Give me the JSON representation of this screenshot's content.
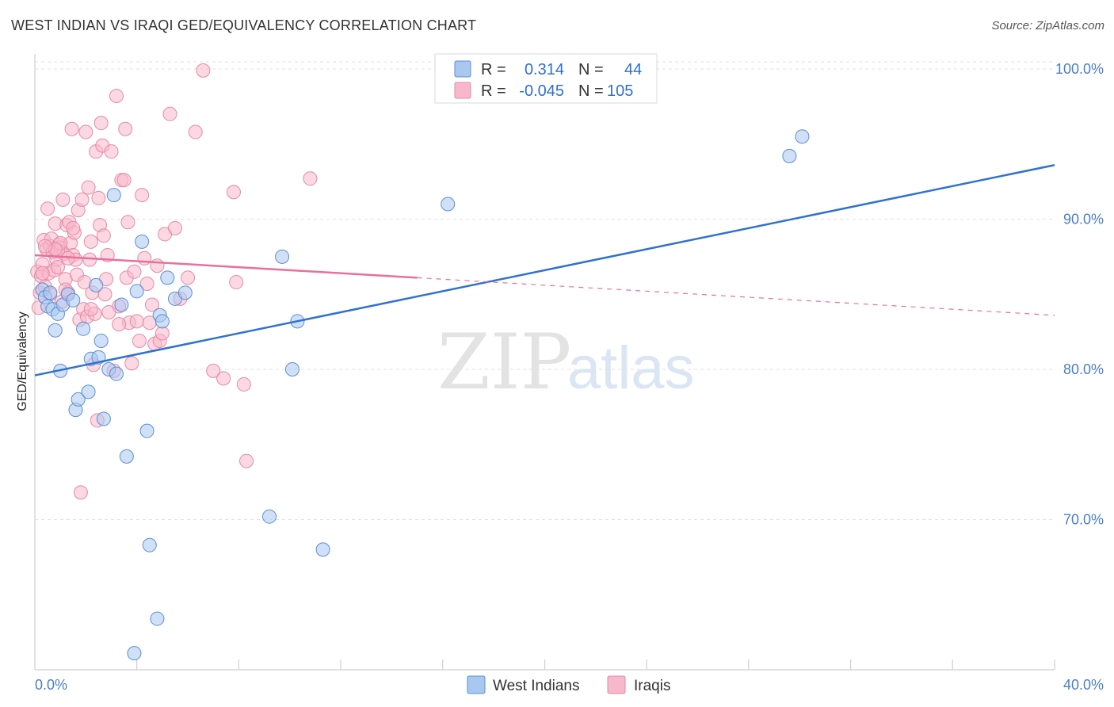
{
  "title": "WEST INDIAN VS IRAQI GED/EQUIVALENCY CORRELATION CHART",
  "source": "Source: ZipAtlas.com",
  "watermark": {
    "zip": "ZIP",
    "atlas": "atlas"
  },
  "legend": {
    "rows": [
      {
        "r_label": "R =",
        "r_value": "0.314",
        "n_label": "N =",
        "n_value": "44",
        "color": "#a9c8f0"
      },
      {
        "r_label": "R =",
        "r_value": "-0.045",
        "n_label": "N =",
        "n_value": "105",
        "color": "#f7b8cb"
      }
    ]
  },
  "bottom_legend": [
    {
      "label": "West Indians",
      "color": "#a9c8f0"
    },
    {
      "label": "Iraqis",
      "color": "#f7b8cb"
    }
  ],
  "chart_data": {
    "type": "scatter",
    "title": "WEST INDIAN VS IRAQI GED/EQUIVALENCY CORRELATION CHART",
    "xlabel": "",
    "ylabel": "GED/Equivalency",
    "xlim": [
      0,
      40
    ],
    "ylim": [
      60,
      101
    ],
    "x_tick_labels": [
      "0.0%",
      "40.0%"
    ],
    "y_ticks": [
      70,
      80,
      90,
      100
    ],
    "y_tick_labels": [
      "70.0%",
      "80.0%",
      "90.0%",
      "100.0%"
    ],
    "colors": {
      "blue_line": "#2f72d0",
      "pink_line": "#e8709a"
    },
    "series": [
      {
        "name": "West Indians",
        "color": "#a9c8f0",
        "stroke": "#5d8fd6",
        "r": 0.314,
        "n": 44,
        "trend": {
          "x0": 0,
          "y0": 79.6,
          "x1": 40,
          "y1": 93.6,
          "style": "solid"
        },
        "points": [
          [
            0.3,
            85.3
          ],
          [
            0.4,
            84.8
          ],
          [
            0.5,
            84.2
          ],
          [
            0.6,
            85.1
          ],
          [
            0.7,
            84.0
          ],
          [
            0.8,
            82.6
          ],
          [
            0.9,
            83.7
          ],
          [
            1.0,
            79.9
          ],
          [
            1.1,
            84.3
          ],
          [
            1.3,
            85.0
          ],
          [
            1.5,
            84.6
          ],
          [
            1.6,
            77.3
          ],
          [
            1.7,
            78.0
          ],
          [
            1.9,
            82.7
          ],
          [
            2.1,
            78.5
          ],
          [
            2.2,
            80.7
          ],
          [
            2.4,
            85.6
          ],
          [
            2.5,
            80.8
          ],
          [
            2.6,
            81.9
          ],
          [
            2.7,
            76.7
          ],
          [
            2.9,
            80.0
          ],
          [
            3.1,
            91.6
          ],
          [
            3.2,
            79.7
          ],
          [
            3.4,
            84.3
          ],
          [
            3.6,
            74.2
          ],
          [
            3.9,
            61.1
          ],
          [
            4.0,
            85.2
          ],
          [
            4.2,
            88.5
          ],
          [
            4.4,
            75.9
          ],
          [
            4.5,
            68.3
          ],
          [
            4.8,
            63.4
          ],
          [
            4.9,
            83.6
          ],
          [
            5.0,
            83.2
          ],
          [
            5.2,
            86.1
          ],
          [
            5.5,
            84.7
          ],
          [
            5.9,
            85.1
          ],
          [
            9.2,
            70.2
          ],
          [
            9.7,
            87.5
          ],
          [
            10.1,
            80.0
          ],
          [
            10.3,
            83.2
          ],
          [
            11.3,
            68.0
          ],
          [
            16.2,
            91.0
          ],
          [
            29.6,
            94.2
          ],
          [
            30.1,
            95.5
          ]
        ]
      },
      {
        "name": "Iraqis",
        "color": "#f7b8cb",
        "stroke": "#e68aa8",
        "r": -0.045,
        "n": 105,
        "trend": {
          "x0": 0,
          "y0": 87.6,
          "x1": 40,
          "y1": 83.6,
          "solid_until_x": 15.0,
          "style": "solid-then-dashed"
        },
        "points": [
          [
            0.1,
            86.5
          ],
          [
            0.15,
            84.1
          ],
          [
            0.2,
            85.1
          ],
          [
            0.25,
            86.2
          ],
          [
            0.3,
            87.0
          ],
          [
            0.35,
            88.6
          ],
          [
            0.4,
            85.5
          ],
          [
            0.45,
            88.0
          ],
          [
            0.5,
            90.7
          ],
          [
            0.55,
            86.4
          ],
          [
            0.6,
            88.2
          ],
          [
            0.65,
            88.7
          ],
          [
            0.7,
            87.8
          ],
          [
            0.75,
            86.6
          ],
          [
            0.8,
            89.7
          ],
          [
            0.85,
            87.3
          ],
          [
            0.9,
            86.8
          ],
          [
            0.95,
            88.3
          ],
          [
            1.0,
            88.1
          ],
          [
            1.05,
            84.5
          ],
          [
            1.1,
            91.3
          ],
          [
            1.15,
            87.7
          ],
          [
            1.2,
            86.0
          ],
          [
            1.25,
            89.6
          ],
          [
            1.3,
            85.1
          ],
          [
            1.35,
            89.8
          ],
          [
            1.4,
            88.4
          ],
          [
            1.45,
            96.0
          ],
          [
            1.5,
            87.6
          ],
          [
            1.55,
            89.1
          ],
          [
            1.6,
            87.3
          ],
          [
            1.65,
            86.3
          ],
          [
            1.7,
            90.6
          ],
          [
            1.75,
            83.3
          ],
          [
            1.8,
            71.8
          ],
          [
            1.85,
            91.3
          ],
          [
            1.9,
            84.0
          ],
          [
            1.95,
            85.8
          ],
          [
            2.0,
            95.8
          ],
          [
            2.05,
            83.5
          ],
          [
            2.1,
            92.1
          ],
          [
            2.15,
            87.3
          ],
          [
            2.2,
            88.5
          ],
          [
            2.25,
            85.1
          ],
          [
            2.3,
            80.3
          ],
          [
            2.35,
            83.7
          ],
          [
            2.4,
            94.5
          ],
          [
            2.45,
            76.6
          ],
          [
            2.5,
            91.4
          ],
          [
            2.55,
            89.6
          ],
          [
            2.6,
            96.4
          ],
          [
            2.65,
            94.9
          ],
          [
            2.7,
            88.9
          ],
          [
            2.75,
            85.0
          ],
          [
            2.8,
            86.0
          ],
          [
            2.85,
            87.6
          ],
          [
            3.0,
            94.5
          ],
          [
            3.1,
            79.9
          ],
          [
            3.2,
            98.2
          ],
          [
            3.3,
            84.2
          ],
          [
            3.4,
            92.6
          ],
          [
            3.5,
            92.6
          ],
          [
            3.55,
            96.0
          ],
          [
            3.6,
            86.1
          ],
          [
            3.65,
            89.8
          ],
          [
            3.7,
            83.1
          ],
          [
            3.8,
            80.4
          ],
          [
            3.9,
            86.5
          ],
          [
            4.0,
            83.2
          ],
          [
            4.1,
            81.9
          ],
          [
            4.2,
            91.6
          ],
          [
            4.3,
            87.4
          ],
          [
            4.4,
            85.7
          ],
          [
            4.5,
            83.1
          ],
          [
            4.6,
            84.3
          ],
          [
            4.7,
            81.7
          ],
          [
            4.8,
            86.9
          ],
          [
            4.9,
            81.9
          ],
          [
            5.0,
            82.4
          ],
          [
            5.1,
            89.0
          ],
          [
            5.3,
            97.0
          ],
          [
            5.5,
            89.4
          ],
          [
            5.7,
            84.7
          ],
          [
            6.0,
            86.1
          ],
          [
            6.3,
            95.8
          ],
          [
            6.6,
            99.9
          ],
          [
            7.0,
            79.9
          ],
          [
            7.4,
            79.4
          ],
          [
            7.8,
            91.8
          ],
          [
            7.9,
            85.8
          ],
          [
            8.2,
            79.0
          ],
          [
            8.3,
            73.9
          ],
          [
            10.8,
            92.7
          ],
          [
            0.3,
            86.4
          ],
          [
            0.6,
            85.0
          ],
          [
            0.9,
            87.9
          ],
          [
            1.2,
            85.3
          ],
          [
            2.9,
            83.8
          ],
          [
            3.3,
            83.0
          ],
          [
            1.0,
            88.4
          ],
          [
            1.5,
            89.4
          ],
          [
            2.2,
            84.0
          ],
          [
            0.8,
            88.0
          ],
          [
            0.4,
            88.2
          ],
          [
            1.3,
            87.4
          ]
        ]
      }
    ]
  }
}
